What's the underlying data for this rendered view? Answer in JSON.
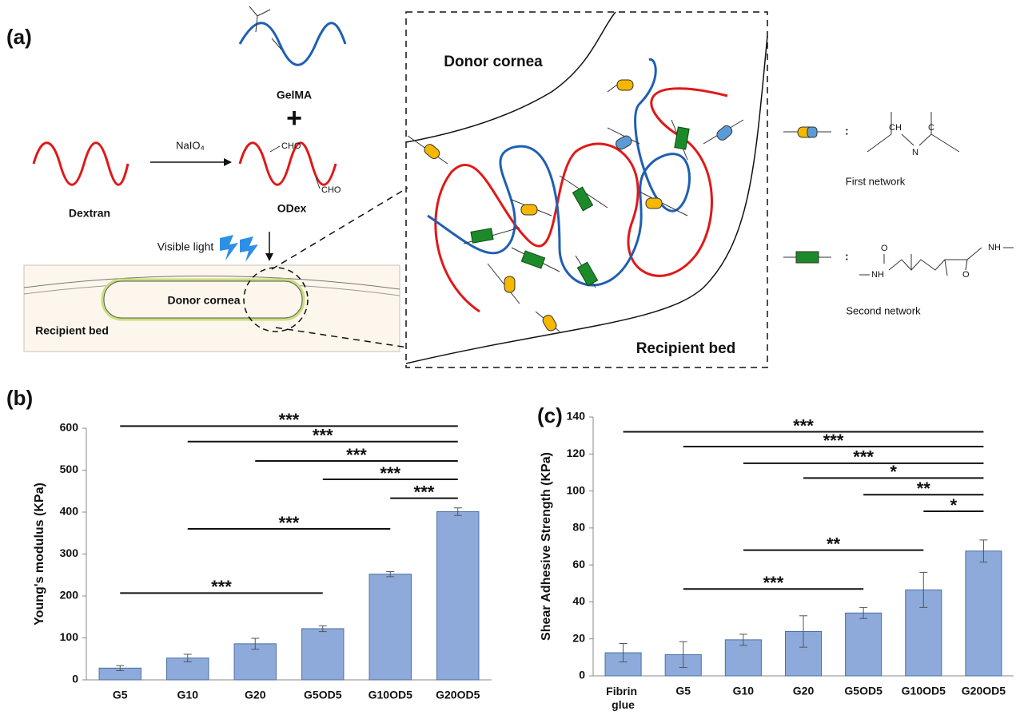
{
  "panel_labels": {
    "a": "(a)",
    "b": "(b)",
    "c": "(c)"
  },
  "diagram": {
    "gelma": "GelMA",
    "plus": "+",
    "reagent": "NaIO₄",
    "dextran": "Dextran",
    "odex": "ODex",
    "cho_1": "CHO",
    "cho_2": "CHO",
    "light": "Visible light",
    "cornea_donor": "Donor cornea",
    "cornea_recipient": "Recipient bed",
    "zoom_donor": "Donor cornea",
    "zoom_recipient": "Recipient bed",
    "colon_1": ":",
    "colon_2": ":",
    "first_network": "First network",
    "second_network": "Second network",
    "chem_first": [
      "CH",
      "N",
      "C"
    ],
    "chem_second": [
      "O",
      "NH",
      "NH",
      "O"
    ]
  },
  "chart_data": [
    {
      "type": "bar",
      "y_label": "Young's modulus (KPa)",
      "categories": [
        "G5",
        "G10",
        "G20",
        "G5OD5",
        "G10OD5",
        "G20OD5"
      ],
      "values": [
        28,
        52,
        86,
        122,
        252,
        401
      ],
      "errors": [
        6,
        9,
        13,
        7,
        6,
        9
      ],
      "color": "#8eaadb",
      "ylim": [
        0,
        600
      ],
      "yticks": [
        0,
        100,
        200,
        300,
        400,
        500,
        600
      ],
      "annotations": [
        {
          "text": "***",
          "from": "G5",
          "to": "G20OD5",
          "y": 605
        },
        {
          "text": "***",
          "from": "G10",
          "to": "G20OD5",
          "y": 568
        },
        {
          "text": "***",
          "from": "G20",
          "to": "G20OD5",
          "y": 522
        },
        {
          "text": "***",
          "from": "G5OD5",
          "to": "G20OD5",
          "y": 478
        },
        {
          "text": "***",
          "from": "G10OD5",
          "to": "G20OD5",
          "y": 433
        },
        {
          "text": "***",
          "from": "G10",
          "to": "G10OD5",
          "y": 360
        },
        {
          "text": "***",
          "from": "G5",
          "to": "G5OD5",
          "y": 207
        }
      ]
    },
    {
      "type": "bar",
      "y_label": "Shear Adhesive Strength (KPa)",
      "categories": [
        "Fibrin glue",
        "G5",
        "G10",
        "G20",
        "G5OD5",
        "G10OD5",
        "G20OD5"
      ],
      "values": [
        12.5,
        11.5,
        19.5,
        24,
        34,
        46.5,
        67.5
      ],
      "errors": [
        5,
        7,
        3,
        8.5,
        3,
        9.5,
        6
      ],
      "color": "#8eaadb",
      "ylim": [
        0,
        140
      ],
      "yticks": [
        0,
        20,
        40,
        60,
        80,
        100,
        120,
        140
      ],
      "annotations": [
        {
          "text": "***",
          "from": "Fibrin glue",
          "to": "G20OD5",
          "y": 132
        },
        {
          "text": "***",
          "from": "G5",
          "to": "G20OD5",
          "y": 124
        },
        {
          "text": "***",
          "from": "G10",
          "to": "G20OD5",
          "y": 115
        },
        {
          "text": "*",
          "from": "G20",
          "to": "G20OD5",
          "y": 107
        },
        {
          "text": "**",
          "from": "G5OD5",
          "to": "G20OD5",
          "y": 98
        },
        {
          "text": "*",
          "from": "G10OD5",
          "to": "G20OD5",
          "y": 89
        },
        {
          "text": "**",
          "from": "G10",
          "to": "G10OD5",
          "y": 68
        },
        {
          "text": "***",
          "from": "G5",
          "to": "G5OD5",
          "y": 47
        }
      ]
    }
  ]
}
